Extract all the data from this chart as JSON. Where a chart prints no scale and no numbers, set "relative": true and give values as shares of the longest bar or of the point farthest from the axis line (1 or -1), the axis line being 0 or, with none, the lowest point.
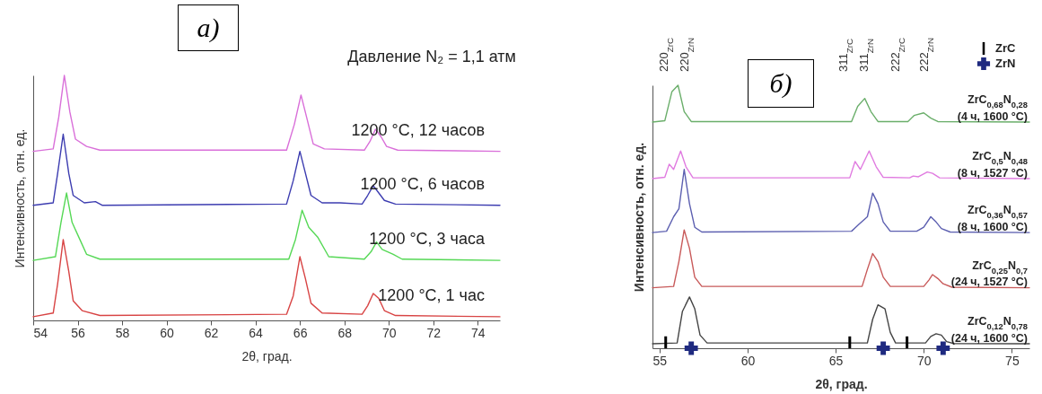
{
  "chart_data": [
    {
      "type": "line",
      "title": "а)",
      "xlabel": "2θ, град.",
      "ylabel": "Интенсивность, отн. ед.",
      "relative": true,
      "xlim": [
        54,
        75
      ],
      "xticks": [
        54,
        56,
        58,
        60,
        62,
        64,
        66,
        68,
        70,
        72,
        74
      ],
      "annotations": [
        "Давление N₂ = 1,1 атм"
      ],
      "series": [
        {
          "name": "1200 °C, 1 час",
          "color": "#d84444",
          "x": [
            54,
            54.9,
            55.1,
            55.35,
            55.6,
            55.8,
            56.2,
            57,
            65.4,
            65.7,
            66.0,
            66.25,
            66.5,
            67,
            68.8,
            69.05,
            69.3,
            69.55,
            69.8,
            70.3,
            75
          ],
          "values": [
            0.015,
            0.03,
            0.15,
            0.33,
            0.2,
            0.08,
            0.04,
            0.02,
            0.025,
            0.1,
            0.26,
            0.17,
            0.07,
            0.03,
            0.025,
            0.06,
            0.11,
            0.09,
            0.04,
            0.02,
            0.015
          ]
        },
        {
          "name": "1200 °C, 3 часа",
          "color": "#55d855",
          "x": [
            54,
            55.0,
            55.25,
            55.5,
            55.75,
            56.1,
            56.4,
            57,
            65.5,
            65.8,
            66.1,
            66.4,
            66.8,
            67.3,
            68.9,
            69.2,
            69.45,
            69.7,
            70.2,
            70.6,
            75
          ],
          "values": [
            0.245,
            0.26,
            0.4,
            0.52,
            0.4,
            0.33,
            0.27,
            0.25,
            0.25,
            0.33,
            0.45,
            0.38,
            0.34,
            0.26,
            0.25,
            0.28,
            0.32,
            0.29,
            0.27,
            0.25,
            0.245
          ]
        },
        {
          "name": "1200 °C, 6 часов",
          "color": "#3c3cb0",
          "x": [
            54,
            54.9,
            55.1,
            55.35,
            55.6,
            55.8,
            56.3,
            56.8,
            57.1,
            65.4,
            65.7,
            66.0,
            66.25,
            66.5,
            67,
            67.8,
            68.8,
            69.05,
            69.3,
            69.55,
            69.8,
            70.3,
            75
          ],
          "values": [
            0.47,
            0.48,
            0.6,
            0.76,
            0.6,
            0.51,
            0.48,
            0.485,
            0.47,
            0.475,
            0.57,
            0.69,
            0.6,
            0.51,
            0.48,
            0.48,
            0.475,
            0.51,
            0.55,
            0.52,
            0.49,
            0.475,
            0.47
          ]
        },
        {
          "name": "1200 °C, 12 часов",
          "color": "#d96fd9",
          "x": [
            54,
            54.9,
            55.15,
            55.4,
            55.65,
            55.9,
            56.4,
            57,
            65.4,
            65.75,
            66.05,
            66.3,
            66.6,
            67.1,
            68.9,
            69.15,
            69.4,
            69.65,
            69.9,
            70.4,
            75
          ],
          "values": [
            0.69,
            0.7,
            0.83,
            1,
            0.85,
            0.74,
            0.71,
            0.695,
            0.695,
            0.8,
            0.92,
            0.83,
            0.72,
            0.7,
            0.695,
            0.73,
            0.78,
            0.75,
            0.71,
            0.695,
            0.69
          ]
        }
      ]
    },
    {
      "type": "line",
      "title": "б)",
      "xlabel": "2θ, град.",
      "ylabel": "Интенсивность, отн. ед.",
      "relative": true,
      "xlim": [
        54.6,
        76
      ],
      "xticks": [
        55,
        60,
        65,
        70,
        75
      ],
      "legend": "top right",
      "annotations": [
        "220$_{ZrC}$",
        "220$_{ZrN}$",
        "311$_{ZrC}$",
        "311$_{ZrN}$",
        "222$_{ZrC}$",
        "222$_{ZrN}$"
      ],
      "series": [
        {
          "name": "ZrC$_{0,12}$N$_{0,78}$\n(24 ч, 1600 °C)",
          "color": "#444444",
          "x": [
            54.6,
            56.0,
            56.3,
            56.7,
            57.0,
            57.3,
            57.7,
            66.8,
            67.1,
            67.4,
            67.8,
            68.1,
            68.4,
            70.1,
            70.4,
            70.7,
            71.0,
            71.3,
            71.7,
            76
          ],
          "values": [
            0.017,
            0.02,
            0.14,
            0.195,
            0.15,
            0.05,
            0.02,
            0.02,
            0.11,
            0.165,
            0.15,
            0.06,
            0.02,
            0.02,
            0.045,
            0.055,
            0.05,
            0.025,
            0.018,
            0.017
          ]
        },
        {
          "name": "ZrC$_{0,25}$N$_{0,7}$\n(24 ч, 1527 °C)",
          "color": "#c85a5a",
          "x": [
            54.6,
            55.8,
            56.1,
            56.4,
            56.7,
            57.0,
            57.4,
            66.5,
            66.8,
            67.1,
            67.4,
            67.7,
            68.1,
            70.0,
            70.3,
            70.5,
            70.8,
            71.1,
            71.6,
            76
          ],
          "values": [
            0.23,
            0.235,
            0.33,
            0.45,
            0.38,
            0.27,
            0.235,
            0.235,
            0.3,
            0.36,
            0.33,
            0.27,
            0.235,
            0.235,
            0.26,
            0.28,
            0.265,
            0.245,
            0.232,
            0.23
          ]
        },
        {
          "name": "ZrC$_{0,36}$N$_{0,57}$\n(8 ч, 1600 °C)",
          "color": "#5c5fb0",
          "x": [
            54.6,
            55.4,
            55.8,
            56.1,
            56.4,
            56.7,
            57.0,
            57.4,
            65.9,
            66.3,
            66.8,
            67.1,
            67.4,
            67.7,
            68.1,
            69.6,
            70.0,
            70.4,
            70.7,
            71.0,
            71.5,
            76
          ],
          "values": [
            0.44,
            0.445,
            0.5,
            0.53,
            0.68,
            0.55,
            0.46,
            0.442,
            0.445,
            0.47,
            0.5,
            0.59,
            0.55,
            0.48,
            0.445,
            0.445,
            0.46,
            0.5,
            0.48,
            0.455,
            0.442,
            0.44
          ]
        },
        {
          "name": "ZrC$_{0,5}$N$_{0,48}$\n(8 ч, 1527 °C)",
          "color": "#e07be0",
          "x": [
            54.6,
            55.3,
            55.55,
            55.8,
            56.2,
            56.5,
            56.9,
            65.8,
            66.1,
            66.4,
            66.9,
            67.3,
            67.7,
            69.2,
            69.4,
            69.7,
            70.2,
            70.5,
            70.9,
            76
          ],
          "values": [
            0.645,
            0.65,
            0.7,
            0.68,
            0.75,
            0.69,
            0.648,
            0.648,
            0.71,
            0.68,
            0.75,
            0.69,
            0.65,
            0.648,
            0.655,
            0.652,
            0.67,
            0.665,
            0.648,
            0.645
          ]
        },
        {
          "name": "ZrC$_{0,68}$N$_{0,28}$\n(4 ч, 1600 °C)",
          "color": "#6aae6a",
          "x": [
            54.6,
            55.3,
            55.7,
            56.05,
            56.4,
            56.8,
            65.9,
            66.25,
            66.65,
            67.0,
            67.4,
            69.1,
            69.45,
            70.0,
            70.4,
            70.8,
            76
          ],
          "values": [
            0.86,
            0.865,
            0.975,
            1,
            0.9,
            0.862,
            0.862,
            0.92,
            0.95,
            0.9,
            0.862,
            0.862,
            0.885,
            0.895,
            0.875,
            0.862,
            0.86
          ]
        },
        {
          "name": "ZrC",
          "type": "bar",
          "color": "#000000",
          "x": [
            55.35,
            65.8,
            69.05
          ],
          "values": [
            0.045,
            0.045,
            0.045
          ]
        },
        {
          "name": "ZrN",
          "type": "scatter",
          "marker": "cross",
          "color": "#1f2a80",
          "x": [
            56.8,
            67.7,
            71.1
          ],
          "values": [
            0,
            0,
            0
          ]
        }
      ]
    }
  ]
}
